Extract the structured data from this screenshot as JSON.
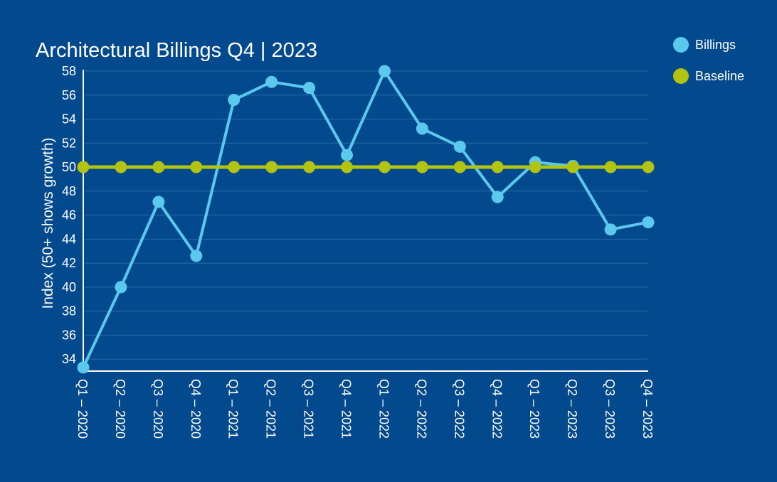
{
  "chart_data": {
    "type": "line",
    "title": "Architectural Billings Q4 | 2023",
    "xlabel": "",
    "ylabel": "Index (50+ shows growth)",
    "categories": [
      "Q1 – 2020",
      "Q2 – 2020",
      "Q3 – 2020",
      "Q4 – 2020",
      "Q1 – 2021",
      "Q2 – 2021",
      "Q3 – 2021",
      "Q4 – 2021",
      "Q1 – 2022",
      "Q2 – 2022",
      "Q3 – 2022",
      "Q4 – 2022",
      "Q1 – 2023",
      "Q2 – 2023",
      "Q3 – 2023",
      "Q4 – 2023"
    ],
    "series": [
      {
        "name": "Billings",
        "color": "#5bc8ee",
        "values": [
          33.3,
          40.0,
          47.1,
          42.6,
          55.6,
          57.1,
          56.6,
          51.0,
          58.0,
          53.2,
          51.7,
          47.5,
          50.4,
          50.1,
          44.8,
          45.4
        ]
      },
      {
        "name": "Baseline",
        "color": "#b3c312",
        "values": [
          50,
          50,
          50,
          50,
          50,
          50,
          50,
          50,
          50,
          50,
          50,
          50,
          50,
          50,
          50,
          50
        ]
      }
    ],
    "ylim": [
      33,
      58
    ],
    "yticks": [
      34,
      36,
      38,
      40,
      42,
      44,
      46,
      48,
      50,
      52,
      54,
      56,
      58
    ],
    "grid": true,
    "legend_position": "top-right"
  }
}
